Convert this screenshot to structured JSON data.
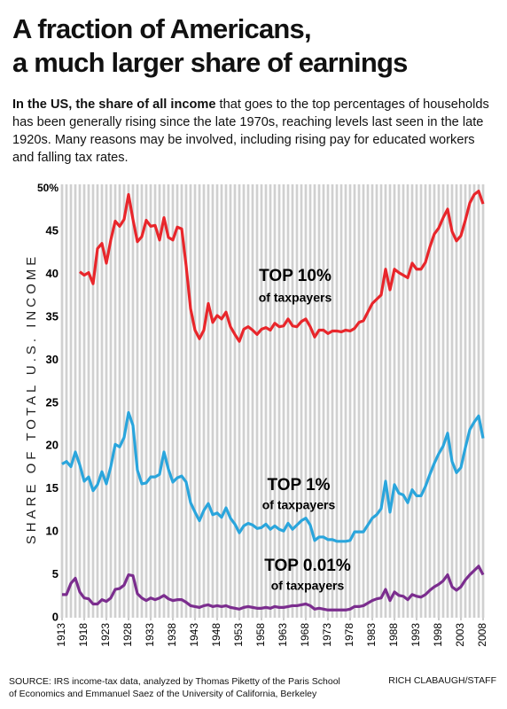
{
  "chart_data": {
    "type": "line",
    "title": [
      "A fraction of Americans,",
      "a much larger share of earnings"
    ],
    "subtitle_bold": "In the US, the share of all income",
    "subtitle": " that goes to the top percentages of households has been generally rising since the late 1970s, reaching levels last seen in the late 1920s. Many reasons may be involved, including rising pay for educated workers and falling tax rates.",
    "y_label": "SHARE OF TOTAL U.S. INCOME",
    "x": [
      1913,
      1914,
      1915,
      1916,
      1917,
      1918,
      1919,
      1920,
      1921,
      1922,
      1923,
      1924,
      1925,
      1926,
      1927,
      1928,
      1929,
      1930,
      1931,
      1932,
      1933,
      1934,
      1935,
      1936,
      1937,
      1938,
      1939,
      1940,
      1941,
      1942,
      1943,
      1944,
      1945,
      1946,
      1947,
      1948,
      1949,
      1950,
      1951,
      1952,
      1953,
      1954,
      1955,
      1956,
      1957,
      1958,
      1959,
      1960,
      1961,
      1962,
      1963,
      1964,
      1965,
      1966,
      1967,
      1968,
      1969,
      1970,
      1971,
      1972,
      1973,
      1974,
      1975,
      1976,
      1977,
      1978,
      1979,
      1980,
      1981,
      1982,
      1983,
      1984,
      1985,
      1986,
      1987,
      1988,
      1989,
      1990,
      1991,
      1992,
      1993,
      1994,
      1995,
      1996,
      1997,
      1998,
      1999,
      2000,
      2001,
      2002,
      2003,
      2004,
      2005,
      2006,
      2007,
      2008
    ],
    "xlim": [
      1913,
      2008
    ],
    "xticks": [
      1913,
      1918,
      1923,
      1928,
      1933,
      1938,
      1943,
      1948,
      1953,
      1958,
      1963,
      1968,
      1973,
      1978,
      1983,
      1988,
      1993,
      1998,
      2003,
      2008
    ],
    "ylim": [
      0,
      51
    ],
    "yticks": [
      0,
      5,
      10,
      15,
      20,
      25,
      30,
      35,
      40,
      45,
      {
        "value": 50,
        "label": "50%"
      }
    ],
    "series": [
      {
        "name": "TOP 10%",
        "color": "#e8262b",
        "values": [
          null,
          null,
          null,
          null,
          40.3,
          39.9,
          40.2,
          38.9,
          43.0,
          43.6,
          41.3,
          44.0,
          46.2,
          45.6,
          46.4,
          49.3,
          46.4,
          43.8,
          44.4,
          46.3,
          45.6,
          45.7,
          44.0,
          46.6,
          44.3,
          44.0,
          45.5,
          45.3,
          41.0,
          36.0,
          33.5,
          32.5,
          33.5,
          36.6,
          34.4,
          35.2,
          34.8,
          35.6,
          33.9,
          33.0,
          32.2,
          33.6,
          33.9,
          33.5,
          33.0,
          33.6,
          33.8,
          33.5,
          34.3,
          33.9,
          34.0,
          34.8,
          34.0,
          33.9,
          34.5,
          34.8,
          33.9,
          32.7,
          33.5,
          33.5,
          33.1,
          33.4,
          33.4,
          33.3,
          33.5,
          33.4,
          33.7,
          34.4,
          34.6,
          35.6,
          36.6,
          37.1,
          37.6,
          40.6,
          38.2,
          40.6,
          40.2,
          39.9,
          39.6,
          41.3,
          40.6,
          40.6,
          41.4,
          43.2,
          44.7,
          45.4,
          46.6,
          47.6,
          45.0,
          43.9,
          44.5,
          46.3,
          48.3,
          49.3,
          49.7,
          48.2
        ]
      },
      {
        "name": "TOP 1%",
        "color": "#2aa5dc",
        "values": [
          17.9,
          18.2,
          17.6,
          19.3,
          17.8,
          15.9,
          16.4,
          14.8,
          15.5,
          17.0,
          15.6,
          17.6,
          20.2,
          19.9,
          21.0,
          23.9,
          22.4,
          17.2,
          15.6,
          15.7,
          16.4,
          16.4,
          16.7,
          19.3,
          17.3,
          15.8,
          16.3,
          16.5,
          15.8,
          13.4,
          12.3,
          11.3,
          12.5,
          13.3,
          12.0,
          12.2,
          11.7,
          12.8,
          11.6,
          10.9,
          9.9,
          10.7,
          11.0,
          10.8,
          10.4,
          10.5,
          10.9,
          10.3,
          10.7,
          10.3,
          10.1,
          11.0,
          10.3,
          10.8,
          11.3,
          11.6,
          10.8,
          9.0,
          9.4,
          9.4,
          9.1,
          9.1,
          8.9,
          8.9,
          8.9,
          9.0,
          10.0,
          10.0,
          10.0,
          10.8,
          11.6,
          12.0,
          12.7,
          15.9,
          12.3,
          15.5,
          14.5,
          14.3,
          13.4,
          14.9,
          14.2,
          14.2,
          15.3,
          16.7,
          18.0,
          19.1,
          20.0,
          21.5,
          18.2,
          16.9,
          17.5,
          19.8,
          21.9,
          22.8,
          23.5,
          20.9
        ]
      },
      {
        "name": "TOP 0.01%",
        "color": "#7b2d8e",
        "values": [
          2.7,
          2.7,
          4.0,
          4.6,
          3.0,
          2.3,
          2.2,
          1.6,
          1.6,
          2.1,
          1.9,
          2.3,
          3.3,
          3.4,
          3.8,
          5.0,
          4.9,
          2.8,
          2.3,
          2.0,
          2.3,
          2.1,
          2.3,
          2.6,
          2.2,
          2.0,
          2.1,
          2.1,
          1.8,
          1.4,
          1.3,
          1.2,
          1.4,
          1.5,
          1.3,
          1.4,
          1.3,
          1.4,
          1.2,
          1.1,
          1.0,
          1.2,
          1.3,
          1.2,
          1.1,
          1.1,
          1.2,
          1.1,
          1.3,
          1.2,
          1.2,
          1.3,
          1.4,
          1.4,
          1.5,
          1.6,
          1.4,
          1.0,
          1.1,
          1.0,
          0.9,
          0.9,
          0.9,
          0.9,
          0.9,
          1.0,
          1.3,
          1.3,
          1.4,
          1.7,
          2.0,
          2.2,
          2.3,
          3.3,
          2.0,
          3.0,
          2.6,
          2.5,
          2.1,
          2.7,
          2.5,
          2.4,
          2.7,
          3.2,
          3.6,
          3.9,
          4.3,
          5.0,
          3.6,
          3.2,
          3.6,
          4.4,
          5.0,
          5.5,
          6.0,
          5.0
        ]
      }
    ],
    "annotation": "of taxpayers",
    "source": [
      "SOURCE: IRS income-tax data, analyzed by Thomas Piketty of the Paris School",
      "of Economics and Emmanuel Saez of the University of California, Berkeley"
    ],
    "credit": "RICH CLABAUGH/STAFF"
  }
}
